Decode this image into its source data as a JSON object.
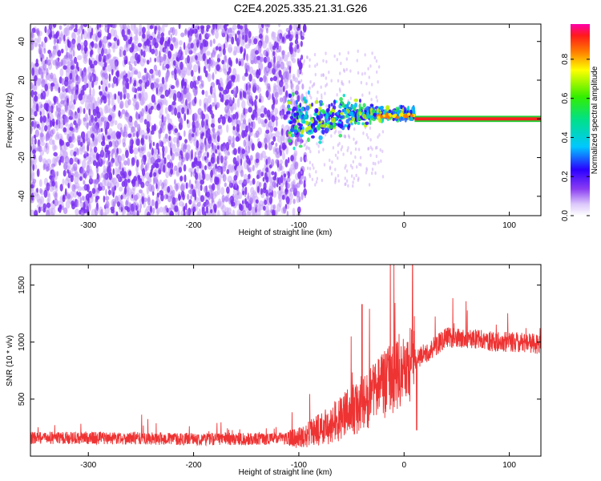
{
  "title": "C2E4.2025.335.21.31.G26",
  "colors": {
    "noise": "#7a2ff0",
    "noise_light": "#c9a6f7",
    "snr_line": "#ee3333",
    "axis": "#000000"
  },
  "chart_data": [
    {
      "type": "heatmap",
      "title": "",
      "xlabel": "Height of straight line (km)",
      "ylabel": "Frequency (Hz)",
      "xlim": [
        -355,
        130
      ],
      "ylim": [
        -50,
        49
      ],
      "xticks": [
        -300,
        -200,
        -100,
        0,
        100
      ],
      "yticks": [
        -40,
        -20,
        0,
        20,
        40
      ],
      "colorbar": {
        "label": "Normalized spectral amplitude",
        "ticks": [
          0.0,
          0.2,
          0.4,
          0.6,
          0.8
        ],
        "range": [
          0,
          0.98
        ]
      },
      "features": [
        {
          "name": "broadband noise",
          "x_range": [
            -355,
            -100
          ],
          "freq_range": [
            -50,
            49
          ],
          "amplitude": 0.1
        },
        {
          "name": "transition signal",
          "x_range": [
            -110,
            10
          ],
          "freq_center": 1,
          "amplitude": 0.4
        },
        {
          "name": "carrier line",
          "x_range": [
            10,
            130
          ],
          "freq_center": 0,
          "amplitude": 0.95
        }
      ]
    },
    {
      "type": "line",
      "title": "",
      "xlabel": "Height of straight line (km)",
      "ylabel": "SNR (10 * v/v)",
      "xlim": [
        -355,
        130
      ],
      "ylim": [
        0,
        1680
      ],
      "xticks": [
        -300,
        -200,
        -100,
        0,
        100
      ],
      "yticks": [
        500,
        1000,
        1500
      ],
      "series": [
        {
          "name": "SNR",
          "x": [
            -355,
            -300,
            -250,
            -200,
            -150,
            -100,
            -80,
            -60,
            -40,
            -20,
            0,
            10,
            20,
            40,
            60,
            80,
            100,
            130
          ],
          "values": [
            160,
            160,
            155,
            150,
            150,
            160,
            230,
            330,
            460,
            620,
            800,
            850,
            900,
            1040,
            1030,
            1010,
            1000,
            980
          ]
        }
      ]
    }
  ]
}
